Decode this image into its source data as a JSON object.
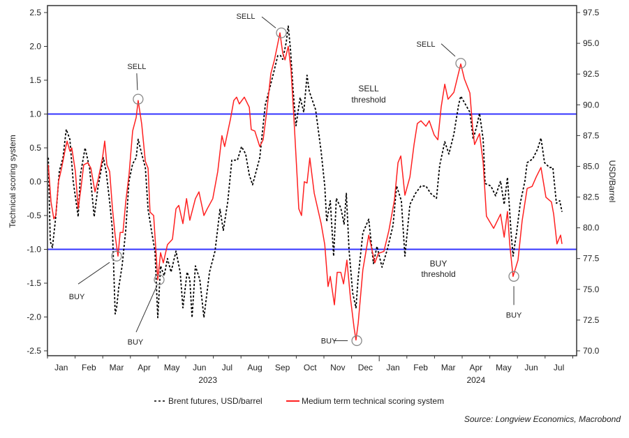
{
  "chart_data": {
    "type": "line",
    "left_axis": {
      "label": "Technical scoring system",
      "ylim": [
        -2.5,
        2.5
      ],
      "ticks": [
        "2.5",
        "2.0",
        "1.5",
        "1.0",
        "0.5",
        "0.0",
        "-0.5",
        "-1.0",
        "-1.5",
        "-2.0",
        "-2.5"
      ]
    },
    "right_axis": {
      "label": "USD/Barrel",
      "ylim": [
        70.0,
        97.5
      ],
      "ticks": [
        "97.5",
        "95.0",
        "92.5",
        "90.0",
        "87.5",
        "85.0",
        "82.5",
        "80.0",
        "77.5",
        "75.0",
        "72.5",
        "70.0"
      ]
    },
    "x_axis": {
      "unit": "months since start of Jan 2023",
      "months": [
        "Jan",
        "Feb",
        "Mar",
        "Apr",
        "May",
        "Jun",
        "Jul",
        "Aug",
        "Sep",
        "Oct",
        "Nov",
        "Dec",
        "Jan",
        "Feb",
        "Mar",
        "Apr",
        "May",
        "Jun",
        "Jul"
      ],
      "years": [
        {
          "label": "2023",
          "at": 5.8
        },
        {
          "label": "2024",
          "at": 15.5
        }
      ]
    },
    "thresholds": [
      {
        "value": 1.0,
        "label1": "SELL",
        "label2": "threshold",
        "color": "#3333ff"
      },
      {
        "value": -1.0,
        "label1": "BUY",
        "label2": "threshold",
        "color": "#3333ff"
      }
    ],
    "series": [
      {
        "name": "Brent futures, USD/barrel",
        "axis": "right",
        "style": "dashed",
        "color": "#000000",
        "points": [
          [
            0.03,
            85.7
          ],
          [
            0.1,
            78.9
          ],
          [
            0.18,
            78.4
          ],
          [
            0.3,
            80.9
          ],
          [
            0.43,
            84.6
          ],
          [
            0.56,
            85.7
          ],
          [
            0.68,
            88.0
          ],
          [
            0.81,
            87.2
          ],
          [
            0.93,
            83.8
          ],
          [
            1.11,
            80.9
          ],
          [
            1.19,
            84.3
          ],
          [
            1.36,
            86.5
          ],
          [
            1.52,
            84.9
          ],
          [
            1.69,
            80.9
          ],
          [
            1.82,
            83.2
          ],
          [
            2.02,
            85.7
          ],
          [
            2.12,
            84.6
          ],
          [
            2.25,
            82.1
          ],
          [
            2.35,
            79.8
          ],
          [
            2.45,
            73.0
          ],
          [
            2.5,
            73.5
          ],
          [
            2.58,
            75.2
          ],
          [
            2.7,
            76.9
          ],
          [
            2.83,
            79.8
          ],
          [
            2.95,
            83.8
          ],
          [
            3.08,
            85.2
          ],
          [
            3.21,
            85.7
          ],
          [
            3.28,
            87.2
          ],
          [
            3.41,
            86.0
          ],
          [
            3.54,
            84.9
          ],
          [
            3.64,
            81.5
          ],
          [
            3.76,
            79.8
          ],
          [
            3.89,
            78.1
          ],
          [
            3.99,
            72.7
          ],
          [
            4.09,
            76.9
          ],
          [
            4.22,
            76.1
          ],
          [
            4.34,
            77.5
          ],
          [
            4.47,
            76.4
          ],
          [
            4.65,
            78.1
          ],
          [
            4.8,
            76.4
          ],
          [
            4.9,
            73.5
          ],
          [
            5.05,
            76.4
          ],
          [
            5.15,
            75.8
          ],
          [
            5.23,
            72.7
          ],
          [
            5.35,
            76.9
          ],
          [
            5.51,
            75.8
          ],
          [
            5.66,
            72.7
          ],
          [
            5.86,
            76.4
          ],
          [
            6.06,
            78.1
          ],
          [
            6.24,
            81.5
          ],
          [
            6.36,
            79.8
          ],
          [
            6.52,
            82.1
          ],
          [
            6.67,
            85.5
          ],
          [
            6.87,
            85.5
          ],
          [
            7.02,
            86.6
          ],
          [
            7.17,
            86.0
          ],
          [
            7.3,
            84.3
          ],
          [
            7.42,
            83.5
          ],
          [
            7.55,
            84.6
          ],
          [
            7.68,
            85.7
          ],
          [
            7.88,
            90.0
          ],
          [
            8.01,
            91.1
          ],
          [
            8.18,
            92.6
          ],
          [
            8.33,
            94.0
          ],
          [
            8.43,
            94.0
          ],
          [
            8.51,
            93.7
          ],
          [
            8.64,
            95.1
          ],
          [
            8.71,
            96.4
          ],
          [
            8.79,
            94.5
          ],
          [
            8.89,
            91.1
          ],
          [
            8.99,
            88.3
          ],
          [
            9.14,
            90.6
          ],
          [
            9.27,
            89.4
          ],
          [
            9.39,
            92.4
          ],
          [
            9.47,
            91.1
          ],
          [
            9.7,
            89.6
          ],
          [
            9.9,
            86.2
          ],
          [
            10.03,
            83.4
          ],
          [
            10.1,
            80.5
          ],
          [
            10.23,
            82.2
          ],
          [
            10.35,
            77.7
          ],
          [
            10.45,
            82.4
          ],
          [
            10.61,
            81.6
          ],
          [
            10.73,
            80.3
          ],
          [
            10.81,
            82.8
          ],
          [
            10.91,
            78.2
          ],
          [
            11.04,
            74.7
          ],
          [
            11.16,
            73.5
          ],
          [
            11.24,
            76.0
          ],
          [
            11.41,
            79.6
          ],
          [
            11.62,
            80.7
          ],
          [
            11.79,
            77.1
          ],
          [
            11.92,
            78.5
          ],
          [
            12.1,
            76.8
          ],
          [
            12.3,
            78.3
          ],
          [
            12.5,
            80.2
          ],
          [
            12.63,
            83.4
          ],
          [
            12.8,
            82.2
          ],
          [
            12.93,
            77.7
          ],
          [
            13.11,
            81.9
          ],
          [
            13.31,
            82.8
          ],
          [
            13.51,
            83.4
          ],
          [
            13.69,
            83.4
          ],
          [
            13.86,
            82.8
          ],
          [
            14.07,
            82.4
          ],
          [
            14.19,
            85.1
          ],
          [
            14.37,
            87.0
          ],
          [
            14.52,
            86.0
          ],
          [
            14.7,
            87.6
          ],
          [
            14.87,
            90.0
          ],
          [
            14.95,
            90.7
          ],
          [
            15.13,
            90.0
          ],
          [
            15.28,
            89.4
          ],
          [
            15.4,
            87.2
          ],
          [
            15.53,
            88.3
          ],
          [
            15.63,
            89.3
          ],
          [
            15.76,
            87.2
          ],
          [
            15.83,
            83.6
          ],
          [
            16.04,
            83.4
          ],
          [
            16.21,
            82.6
          ],
          [
            16.39,
            83.8
          ],
          [
            16.52,
            81.9
          ],
          [
            16.64,
            84.1
          ],
          [
            16.77,
            79.6
          ],
          [
            16.84,
            77.7
          ],
          [
            16.97,
            79.6
          ],
          [
            17.1,
            82.0
          ],
          [
            17.27,
            83.8
          ],
          [
            17.35,
            85.3
          ],
          [
            17.55,
            85.6
          ],
          [
            17.73,
            86.4
          ],
          [
            17.85,
            87.3
          ],
          [
            17.98,
            85.3
          ],
          [
            18.16,
            84.9
          ],
          [
            18.28,
            84.9
          ],
          [
            18.41,
            82.0
          ],
          [
            18.53,
            82.2
          ],
          [
            18.61,
            81.3
          ]
        ]
      },
      {
        "name": "Medium term technical scoring system",
        "axis": "left",
        "style": "solid",
        "color": "#ff2020",
        "points": [
          [
            0.03,
            0.25
          ],
          [
            0.13,
            -0.3
          ],
          [
            0.23,
            -0.55
          ],
          [
            0.3,
            -0.5
          ],
          [
            0.4,
            0.0
          ],
          [
            0.51,
            0.2
          ],
          [
            0.63,
            0.45
          ],
          [
            0.71,
            0.6
          ],
          [
            0.81,
            0.45
          ],
          [
            0.88,
            0.5
          ],
          [
            1.01,
            0.15
          ],
          [
            1.11,
            -0.4
          ],
          [
            1.21,
            -0.1
          ],
          [
            1.31,
            0.25
          ],
          [
            1.46,
            0.28
          ],
          [
            1.57,
            0.2
          ],
          [
            1.72,
            -0.15
          ],
          [
            1.84,
            0.05
          ],
          [
            1.99,
            0.35
          ],
          [
            2.07,
            0.6
          ],
          [
            2.15,
            0.25
          ],
          [
            2.25,
            0.15
          ],
          [
            2.35,
            -0.4
          ],
          [
            2.45,
            -0.8
          ],
          [
            2.55,
            -1.1
          ],
          [
            2.63,
            -0.75
          ],
          [
            2.73,
            -0.75
          ],
          [
            2.83,
            -0.3
          ],
          [
            2.95,
            0.1
          ],
          [
            3.08,
            0.75
          ],
          [
            3.21,
            0.95
          ],
          [
            3.28,
            1.2
          ],
          [
            3.41,
            0.85
          ],
          [
            3.54,
            0.3
          ],
          [
            3.64,
            0.2
          ],
          [
            3.71,
            -0.45
          ],
          [
            3.84,
            -0.5
          ],
          [
            3.99,
            -1.45
          ],
          [
            4.09,
            -1.05
          ],
          [
            4.19,
            -1.2
          ],
          [
            4.34,
            -0.93
          ],
          [
            4.52,
            -0.85
          ],
          [
            4.65,
            -0.4
          ],
          [
            4.75,
            -0.35
          ],
          [
            4.9,
            -0.62
          ],
          [
            5.03,
            -0.25
          ],
          [
            5.15,
            -0.57
          ],
          [
            5.35,
            -0.25
          ],
          [
            5.48,
            -0.15
          ],
          [
            5.66,
            -0.5
          ],
          [
            5.78,
            -0.4
          ],
          [
            5.98,
            -0.25
          ],
          [
            6.16,
            0.15
          ],
          [
            6.31,
            0.68
          ],
          [
            6.41,
            0.52
          ],
          [
            6.62,
            0.93
          ],
          [
            6.74,
            1.2
          ],
          [
            6.84,
            1.25
          ],
          [
            6.94,
            1.15
          ],
          [
            7.12,
            1.25
          ],
          [
            7.3,
            1.1
          ],
          [
            7.37,
            0.77
          ],
          [
            7.5,
            0.75
          ],
          [
            7.68,
            0.52
          ],
          [
            7.8,
            0.62
          ],
          [
            7.93,
            1.03
          ],
          [
            8.08,
            1.6
          ],
          [
            8.21,
            1.8
          ],
          [
            8.31,
            2.0
          ],
          [
            8.41,
            2.2
          ],
          [
            8.51,
            1.9
          ],
          [
            8.59,
            1.8
          ],
          [
            8.71,
            2.0
          ],
          [
            8.81,
            1.65
          ],
          [
            8.91,
            0.98
          ],
          [
            9.04,
            0.0
          ],
          [
            9.09,
            -0.4
          ],
          [
            9.19,
            -0.5
          ],
          [
            9.29,
            0.0
          ],
          [
            9.39,
            -0.02
          ],
          [
            9.49,
            0.35
          ],
          [
            9.65,
            -0.17
          ],
          [
            9.9,
            -0.62
          ],
          [
            10.03,
            -0.93
          ],
          [
            10.15,
            -1.55
          ],
          [
            10.23,
            -1.4
          ],
          [
            10.38,
            -1.82
          ],
          [
            10.48,
            -1.34
          ],
          [
            10.61,
            -1.34
          ],
          [
            10.71,
            -1.51
          ],
          [
            10.83,
            -1.16
          ],
          [
            10.96,
            -1.72
          ],
          [
            11.09,
            -2.16
          ],
          [
            11.16,
            -2.34
          ],
          [
            11.24,
            -2.09
          ],
          [
            11.41,
            -1.3
          ],
          [
            11.62,
            -0.79
          ],
          [
            11.84,
            -1.2
          ],
          [
            11.97,
            -1.06
          ],
          [
            12.17,
            -1.03
          ],
          [
            12.35,
            -0.72
          ],
          [
            12.55,
            -0.27
          ],
          [
            12.68,
            0.28
          ],
          [
            12.78,
            0.38
          ],
          [
            12.93,
            -0.2
          ],
          [
            13.11,
            0.07
          ],
          [
            13.26,
            0.55
          ],
          [
            13.38,
            0.86
          ],
          [
            13.51,
            0.9
          ],
          [
            13.69,
            0.82
          ],
          [
            13.81,
            0.9
          ],
          [
            13.99,
            0.69
          ],
          [
            14.12,
            0.62
          ],
          [
            14.24,
            1.1
          ],
          [
            14.37,
            1.44
          ],
          [
            14.49,
            1.22
          ],
          [
            14.7,
            1.32
          ],
          [
            14.95,
            1.74
          ],
          [
            15.08,
            1.52
          ],
          [
            15.28,
            1.31
          ],
          [
            15.38,
            0.8
          ],
          [
            15.45,
            0.55
          ],
          [
            15.63,
            0.71
          ],
          [
            15.76,
            0.28
          ],
          [
            15.88,
            -0.51
          ],
          [
            16.14,
            -0.69
          ],
          [
            16.39,
            -0.48
          ],
          [
            16.52,
            -0.82
          ],
          [
            16.64,
            -0.44
          ],
          [
            16.72,
            -0.92
          ],
          [
            16.84,
            -1.4
          ],
          [
            17.02,
            -1.16
          ],
          [
            17.17,
            -0.58
          ],
          [
            17.35,
            -0.1
          ],
          [
            17.53,
            -0.07
          ],
          [
            17.68,
            0.07
          ],
          [
            17.85,
            0.21
          ],
          [
            18.03,
            -0.23
          ],
          [
            18.23,
            -0.3
          ],
          [
            18.31,
            -0.48
          ],
          [
            18.43,
            -0.92
          ],
          [
            18.56,
            -0.79
          ],
          [
            18.61,
            -0.92
          ]
        ]
      }
    ],
    "annotations": [
      {
        "text": "SELL",
        "t": 3.28,
        "value": 1.22
      },
      {
        "text": "BUY",
        "t": 2.5,
        "value": -1.1
      },
      {
        "text": "BUY",
        "t": 4.04,
        "value": -1.45
      },
      {
        "text": "SELL",
        "t": 8.46,
        "value": 2.2
      },
      {
        "text": "BUY",
        "t": 11.19,
        "value": -2.35
      },
      {
        "text": "SELL",
        "t": 14.95,
        "value": 1.75
      },
      {
        "text": "BUY",
        "t": 16.87,
        "value": -1.4
      }
    ],
    "legend": {
      "position": "bottom-center",
      "items": [
        "Brent futures, USD/barrel",
        "Medium term technical scoring system"
      ]
    },
    "source": "Source: Longview Economics, Macrobond"
  }
}
